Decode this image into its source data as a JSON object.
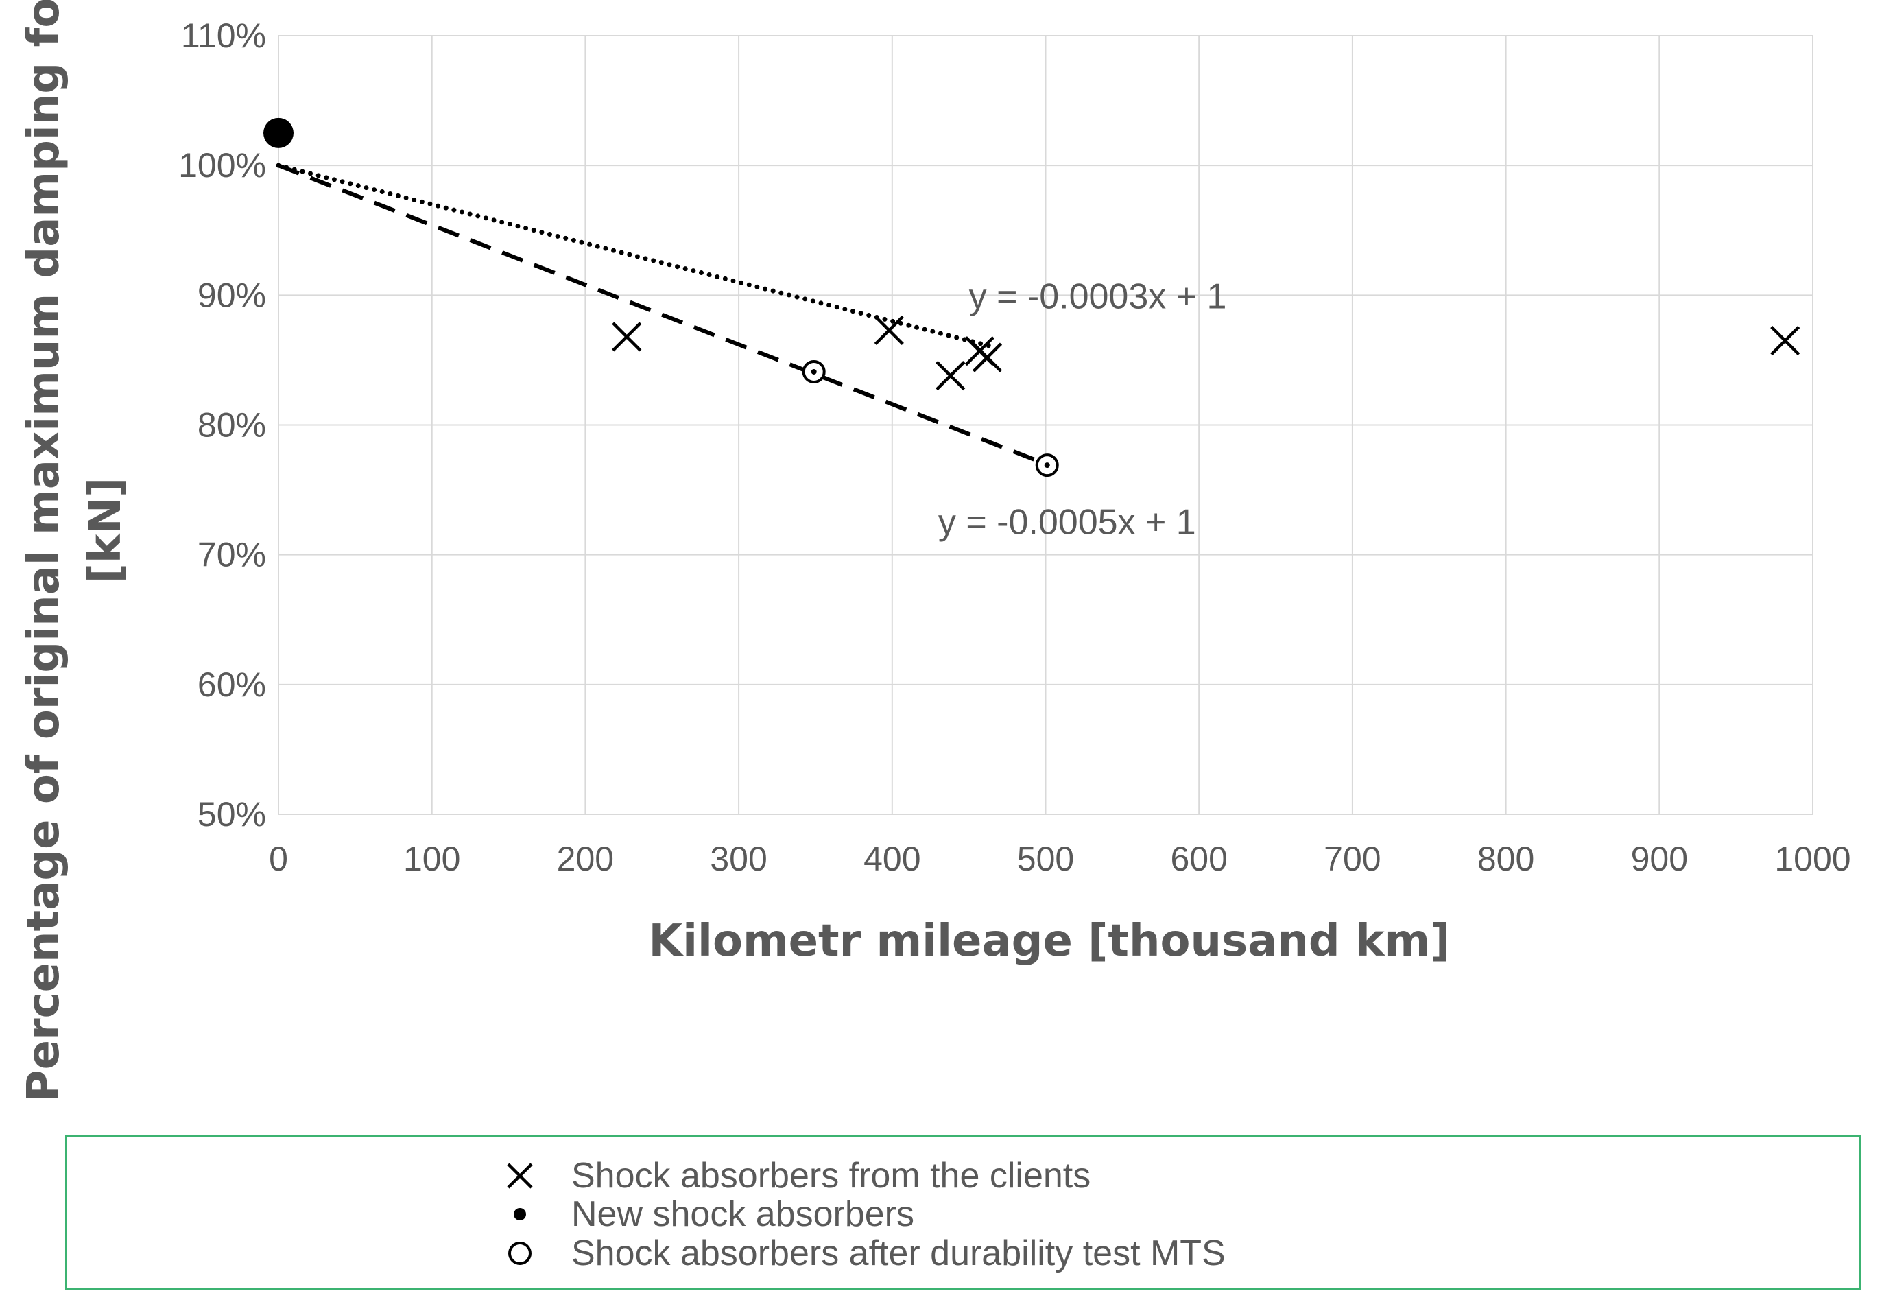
{
  "chart_data": {
    "type": "scatter",
    "xlabel": "Kilometr mileage [thousand km]",
    "ylabel_lines": [
      "Percentage of original maximum damping force",
      "[kN]"
    ],
    "xlim": [
      0,
      1000
    ],
    "ylim": [
      0.5,
      1.1
    ],
    "x_ticks": [
      0,
      100,
      200,
      300,
      400,
      500,
      600,
      700,
      800,
      900,
      1000
    ],
    "y_ticks": [
      0.5,
      0.6,
      0.7,
      0.8,
      0.9,
      1.0,
      1.1
    ],
    "x_tick_labels": [
      "0",
      "100",
      "200",
      "300",
      "400",
      "500",
      "600",
      "700",
      "800",
      "900",
      "1000"
    ],
    "y_tick_labels": [
      "50%",
      "60%",
      "70%",
      "80%",
      "90%",
      "100%",
      "110%"
    ],
    "grid": true,
    "series": [
      {
        "name": "Shock absorbers from the clients",
        "marker": "x",
        "points": [
          [
            227,
            0.868
          ],
          [
            398,
            0.873
          ],
          [
            438,
            0.838
          ],
          [
            457,
            0.857
          ],
          [
            462,
            0.852
          ],
          [
            982,
            0.865
          ]
        ]
      },
      {
        "name": "New shock absorbers",
        "marker": "filled-circle",
        "points": [
          [
            0,
            1.025
          ]
        ]
      },
      {
        "name": "Shock absorbers after durability test MTS",
        "marker": "open-circle",
        "points": [
          [
            349,
            0.841
          ],
          [
            501,
            0.769
          ]
        ]
      }
    ],
    "trendlines": [
      {
        "style": "dotted",
        "x_range": [
          0,
          465
        ],
        "slope_per_thousand_km": -0.0003,
        "intercept": 1.0,
        "label": "y = -0.0003x + 1",
        "label_anchor": [
          450,
          0.89
        ]
      },
      {
        "style": "dashed",
        "x_range": [
          0,
          501
        ],
        "slope_per_thousand_km": -0.00046,
        "intercept": 1.0,
        "label": "y = -0.0005x + 1",
        "label_anchor": [
          430,
          0.716
        ]
      }
    ]
  },
  "legend": {
    "items": [
      {
        "label": "Shock absorbers from the clients",
        "marker": "x"
      },
      {
        "label": "New shock absorbers",
        "marker": "filled-circle"
      },
      {
        "label": "Shock absorbers after durability test MTS",
        "marker": "open-circle"
      }
    ]
  },
  "colors": {
    "grid": "#d9d9d9",
    "text": "#595959",
    "marker": "#000000",
    "legend_border": "#3cb371"
  }
}
